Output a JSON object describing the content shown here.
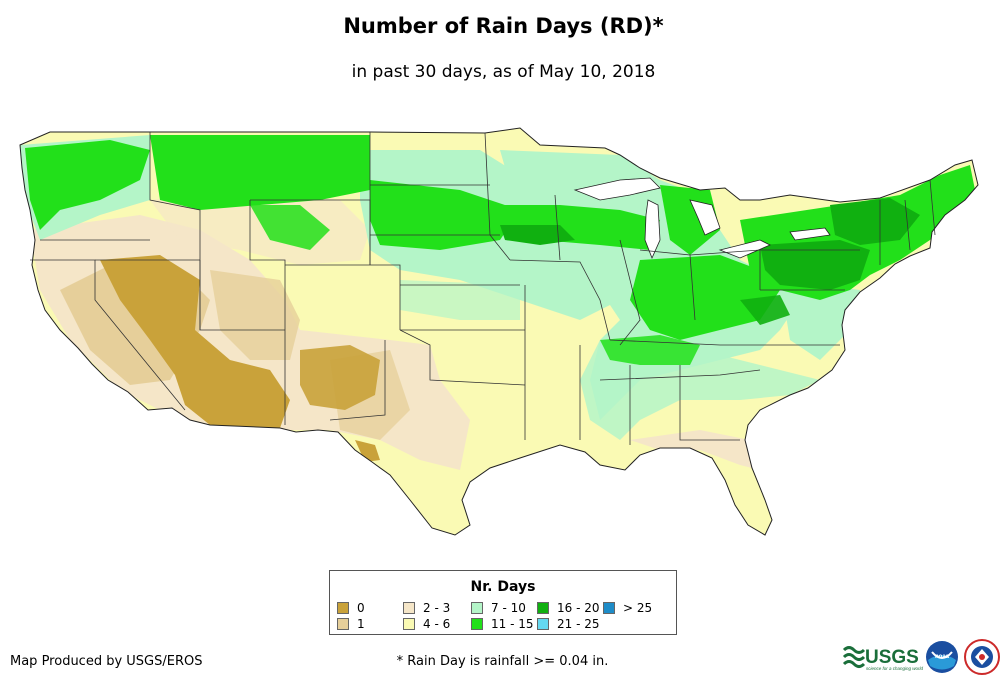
{
  "title": "Number of Rain Days (RD)*",
  "subtitle": "in past 30 days, as of May 10, 2018",
  "legend": {
    "title": "Nr. Days",
    "items": [
      {
        "label": "0",
        "color": "#c9a23a"
      },
      {
        "label": "1",
        "color": "#e6cf9a"
      },
      {
        "label": "2 - 3",
        "color": "#f5e6c8"
      },
      {
        "label": "4 - 6",
        "color": "#fafab4"
      },
      {
        "label": "7 - 10",
        "color": "#b4f5c8"
      },
      {
        "label": "11 - 15",
        "color": "#22e01a"
      },
      {
        "label": "16 - 20",
        "color": "#10b010"
      },
      {
        "label": "21 - 25",
        "color": "#64d8f0"
      },
      {
        "label": "> 25",
        "color": "#1e8cc8"
      }
    ]
  },
  "producer": "Map Produced by USGS/EROS",
  "footnote": "* Rain Day is rainfall >= 0.04 in.",
  "logos": {
    "usgs": "USGS",
    "usgs_tagline": "science for a changing world",
    "noaa": "noaa"
  }
}
